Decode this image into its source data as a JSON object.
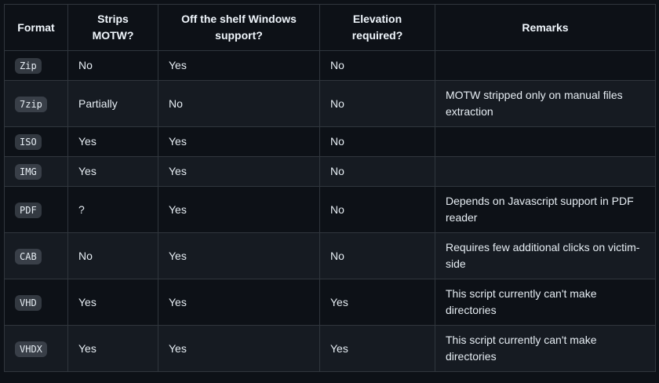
{
  "colors": {
    "page_background": "#0d1117",
    "row_alt_background": "#161b22",
    "border": "#30363d",
    "text": "#e6edf3",
    "header_text": "#f0f6fc",
    "code_badge_background": "rgba(110,118,129,0.4)"
  },
  "table": {
    "headers": [
      "Format",
      "Strips MOTW?",
      "Off the shelf Windows support?",
      "Elevation required?",
      "Remarks"
    ],
    "rows": [
      {
        "format": "Zip",
        "strips_motw": "No",
        "off_the_shelf_windows_support": "Yes",
        "elevation_required": "No",
        "remarks": ""
      },
      {
        "format": "7zip",
        "strips_motw": "Partially",
        "off_the_shelf_windows_support": "No",
        "elevation_required": "No",
        "remarks": "MOTW stripped only on manual files extraction"
      },
      {
        "format": "ISO",
        "strips_motw": "Yes",
        "off_the_shelf_windows_support": "Yes",
        "elevation_required": "No",
        "remarks": ""
      },
      {
        "format": "IMG",
        "strips_motw": "Yes",
        "off_the_shelf_windows_support": "Yes",
        "elevation_required": "No",
        "remarks": ""
      },
      {
        "format": "PDF",
        "strips_motw": "?",
        "off_the_shelf_windows_support": "Yes",
        "elevation_required": "No",
        "remarks": "Depends on Javascript support in PDF reader"
      },
      {
        "format": "CAB",
        "strips_motw": "No",
        "off_the_shelf_windows_support": "Yes",
        "elevation_required": "No",
        "remarks": "Requires few additional clicks on victim-side"
      },
      {
        "format": "VHD",
        "strips_motw": "Yes",
        "off_the_shelf_windows_support": "Yes",
        "elevation_required": "Yes",
        "remarks": "This script currently can't make directories"
      },
      {
        "format": "VHDX",
        "strips_motw": "Yes",
        "off_the_shelf_windows_support": "Yes",
        "elevation_required": "Yes",
        "remarks": "This script currently can't make directories"
      }
    ]
  }
}
